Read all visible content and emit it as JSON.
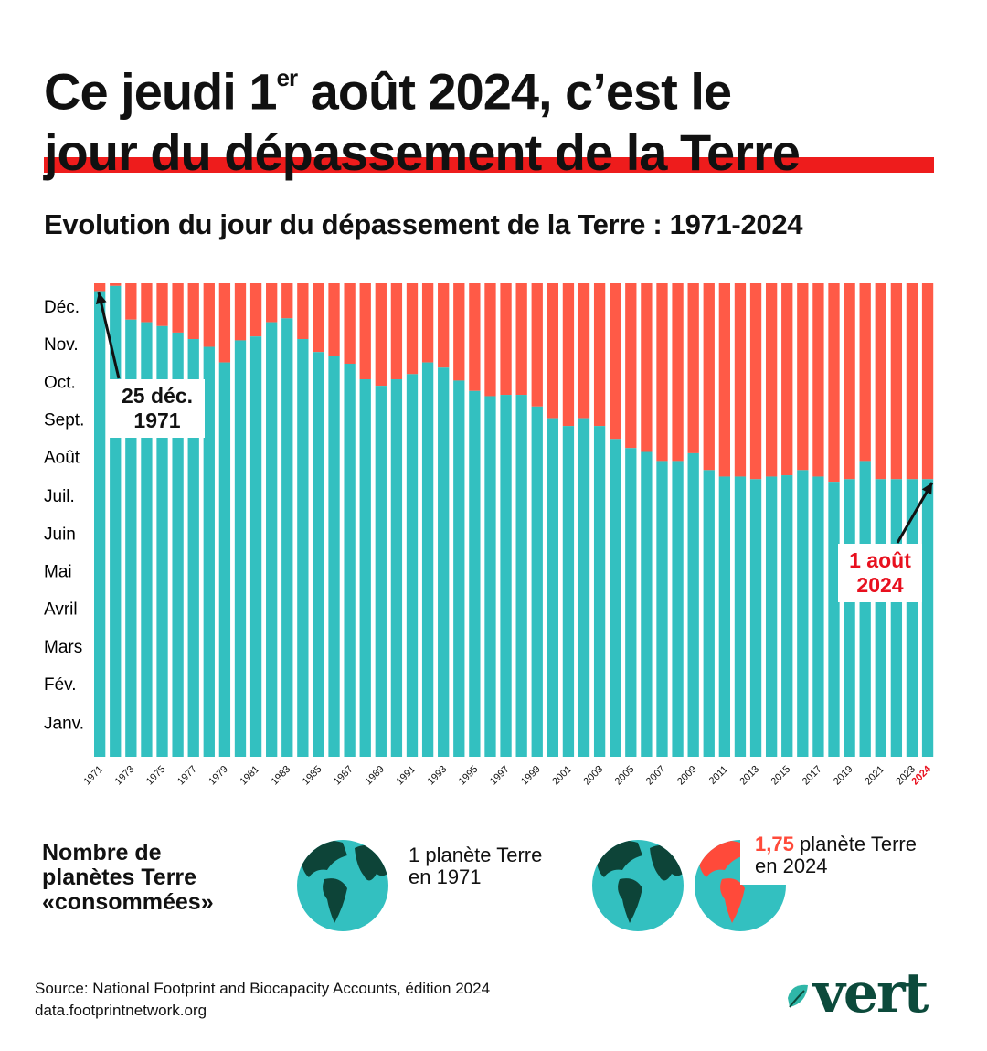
{
  "header": {
    "title_part1": "Ce jeudi 1",
    "title_sup": "er",
    "title_part2": " août 2024, c’est le",
    "title_line2": "jour du dépassement de la Terre"
  },
  "chart_data": {
    "type": "bar",
    "title": "Evolution du jour du dépassement de la Terre : 1971-2024",
    "categories": [
      "1971",
      null,
      "1973",
      null,
      "1975",
      null,
      "1977",
      null,
      "1979",
      null,
      "1981",
      null,
      "1983",
      null,
      "1985",
      null,
      "1987",
      null,
      "1989",
      null,
      "1991",
      null,
      "1993",
      null,
      "1995",
      null,
      "1997",
      null,
      "1999",
      null,
      "2001",
      null,
      "2003",
      null,
      "2005",
      null,
      "2007",
      null,
      "2009",
      null,
      "2011",
      null,
      "2013",
      null,
      "2015",
      null,
      "2017",
      null,
      "2019",
      null,
      "2021",
      null,
      "2023",
      "2024"
    ],
    "values": [
      359,
      363,
      337,
      335,
      332,
      327,
      322,
      316,
      304,
      321,
      324,
      335,
      338,
      322,
      312,
      309,
      303,
      291,
      286,
      291,
      295,
      304,
      300,
      290,
      282,
      278,
      279,
      279,
      270,
      261,
      255,
      261,
      255,
      245,
      238,
      235,
      228,
      228,
      234,
      221,
      216,
      216,
      214,
      216,
      217,
      221,
      216,
      212,
      214,
      228,
      214,
      214,
      214,
      214
    ],
    "color": "#33c0c0",
    "remainder_color": "#ff5a47",
    "highlight_color": "#e8101e",
    "ylim": [
      0,
      365
    ],
    "yticks": [
      {
        "value": 25,
        "label": "Janv."
      },
      {
        "value": 55,
        "label": "Fév."
      },
      {
        "value": 84,
        "label": "Mars"
      },
      {
        "value": 113,
        "label": "Avril"
      },
      {
        "value": 142,
        "label": "Mai"
      },
      {
        "value": 171,
        "label": "Juin"
      },
      {
        "value": 200,
        "label": "Juil."
      },
      {
        "value": 230,
        "label": "Août"
      },
      {
        "value": 259,
        "label": "Sept."
      },
      {
        "value": 288,
        "label": "Oct."
      },
      {
        "value": 317,
        "label": "Nov."
      },
      {
        "value": 346,
        "label": "Déc."
      }
    ],
    "grid": false,
    "annotations": [
      {
        "lines": [
          "25 déc.",
          "1971"
        ],
        "color": "#111111"
      },
      {
        "lines": [
          "1 août",
          "2024"
        ],
        "color": "#e8101e"
      }
    ]
  },
  "planets": {
    "label": [
      "Nombre de",
      "planètes Terre",
      "«consommées»"
    ],
    "left_text": [
      "1 planète Terre",
      "en 1971"
    ],
    "right_value": "1,75",
    "right_text": [
      " planète Terre",
      "en 2024"
    ]
  },
  "source": [
    "Source: National Footprint and Biocapacity Accounts, édition 2024",
    "data.footprintnetwork.org"
  ],
  "logo": "vert"
}
